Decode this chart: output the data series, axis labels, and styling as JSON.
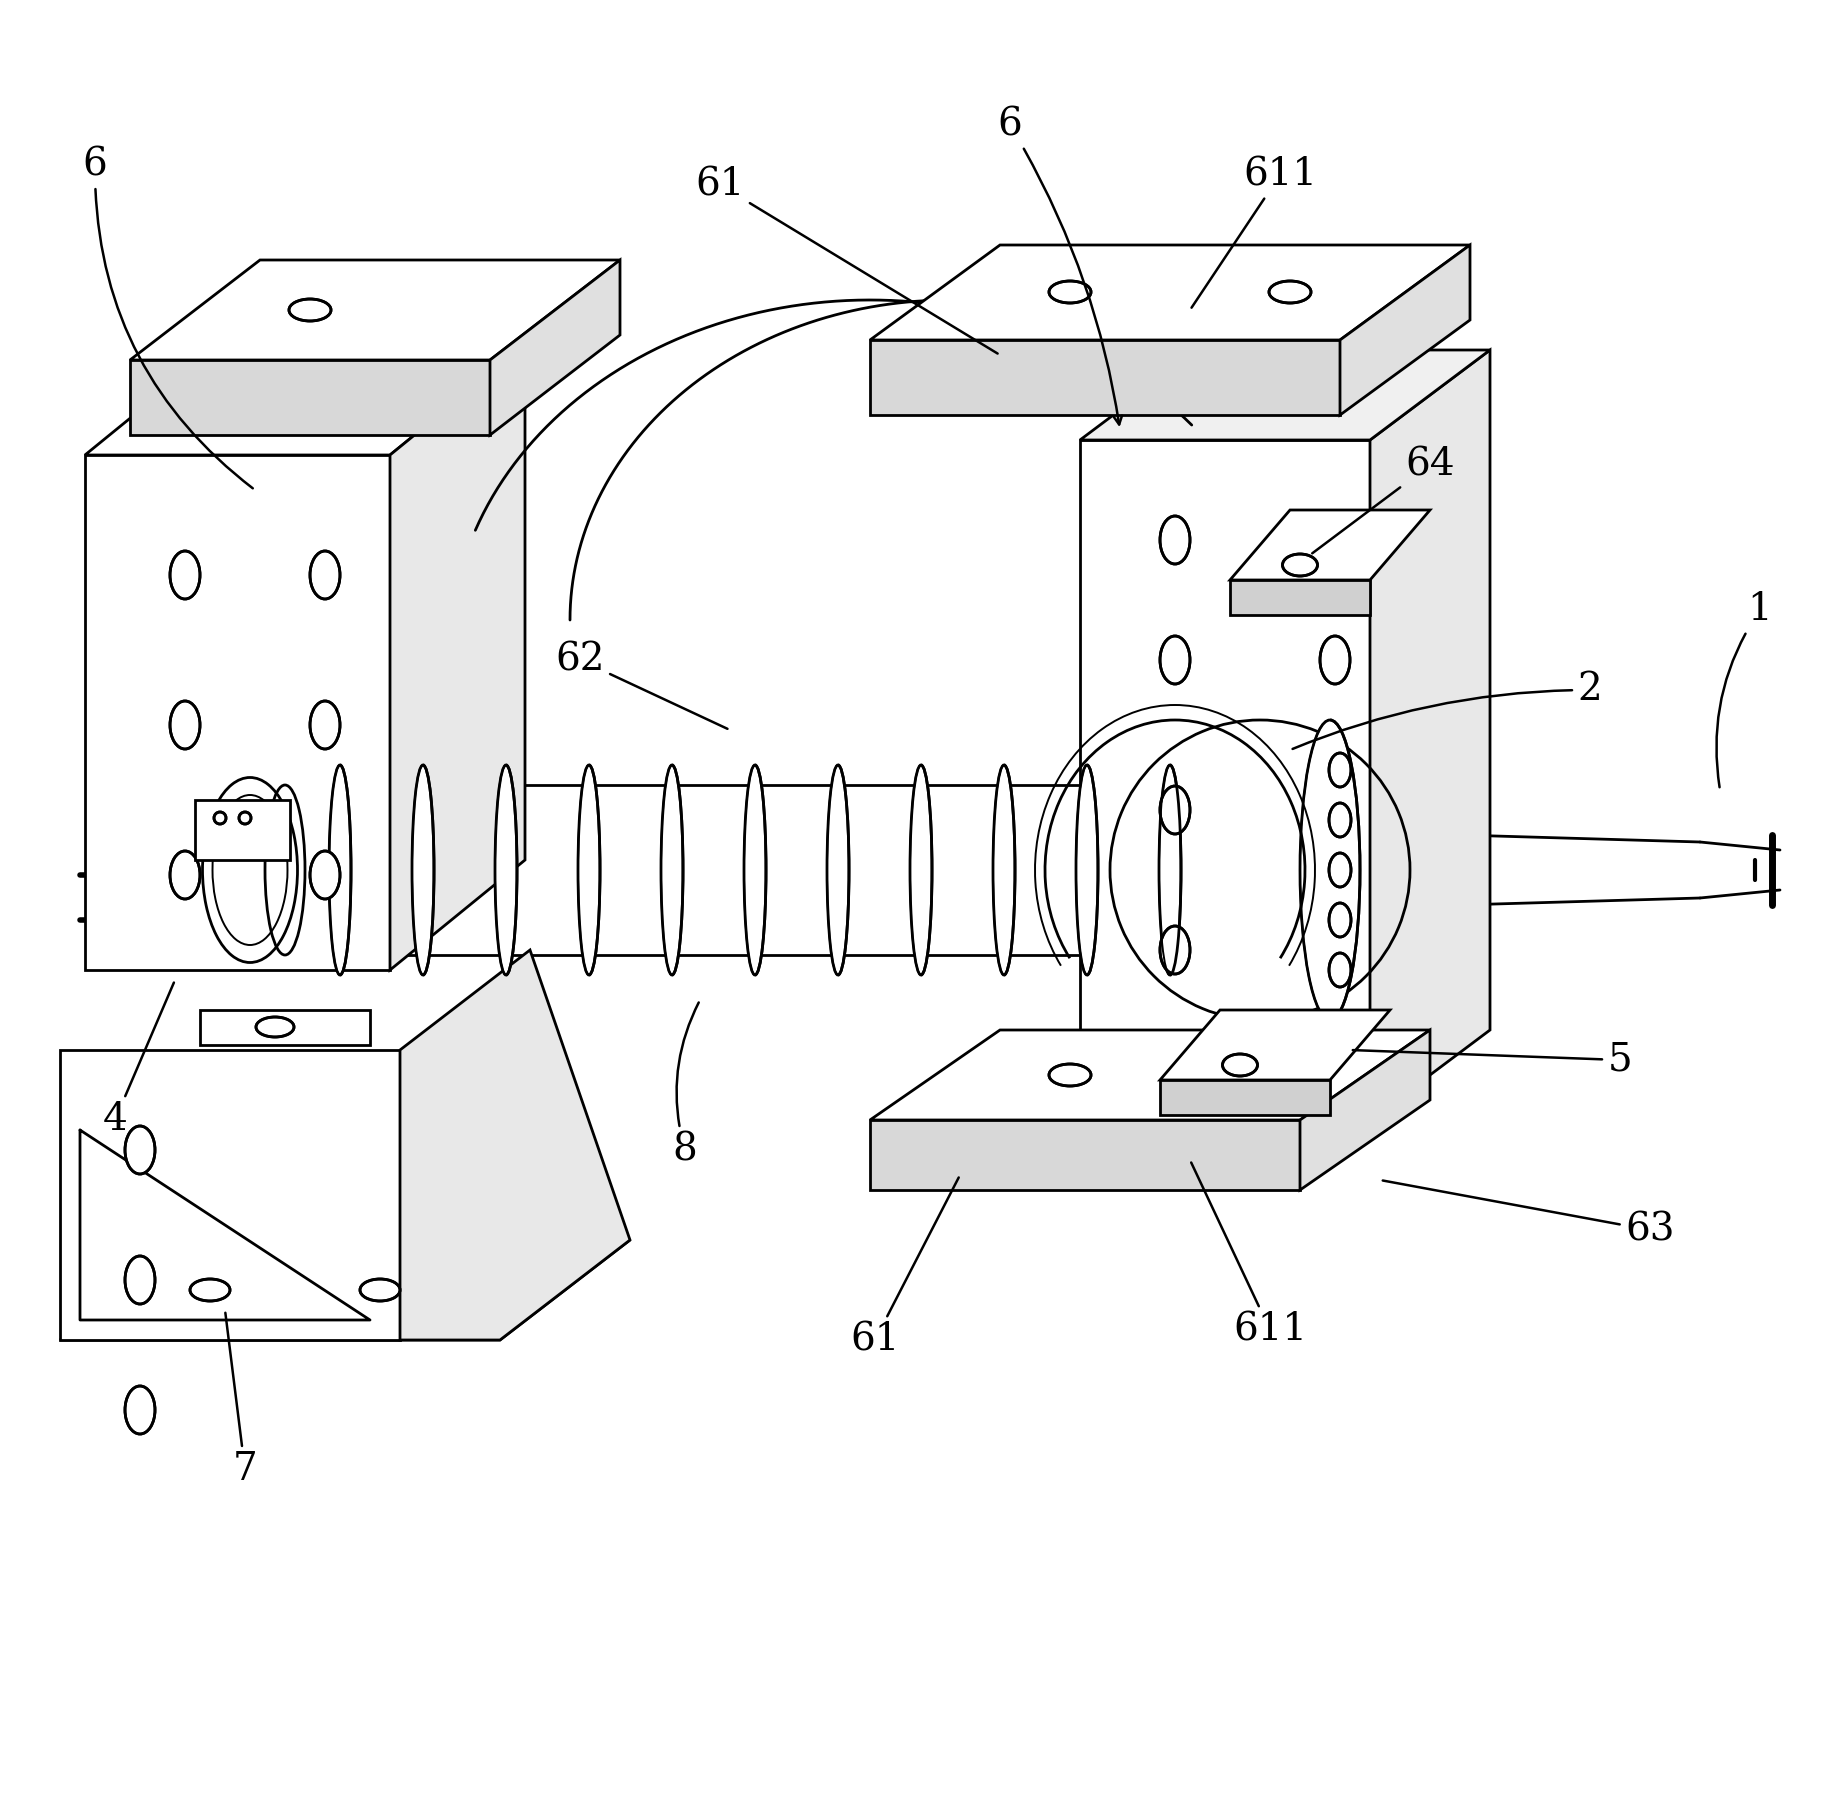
{
  "bg_color": "#ffffff",
  "line_color": "#000000",
  "lw": 2.0,
  "fig_width": 18.44,
  "fig_height": 17.95,
  "dpi": 100,
  "label_fontsize": 28,
  "anno_lw": 1.8
}
